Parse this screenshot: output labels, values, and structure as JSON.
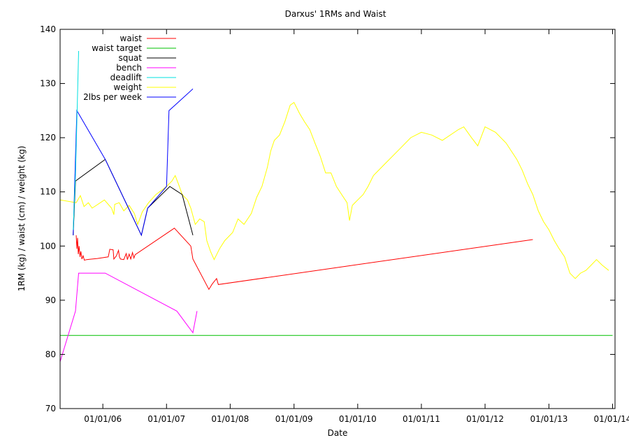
{
  "chart_data": {
    "type": "line",
    "title": "Darxus' 1RMs and Waist",
    "xlabel": "Date",
    "ylabel": "1RM (kg) / waist (cm) / weight (kg)",
    "xlim": [
      "2005-05-01",
      "2014-01-15"
    ],
    "ylim": [
      70,
      140
    ],
    "x_ticks": [
      {
        "date": "2006-01-01",
        "label": "01/01/06"
      },
      {
        "date": "2007-01-01",
        "label": "01/01/07"
      },
      {
        "date": "2008-01-01",
        "label": "01/01/08"
      },
      {
        "date": "2009-01-01",
        "label": "01/01/09"
      },
      {
        "date": "2010-01-01",
        "label": "01/01/10"
      },
      {
        "date": "2011-01-01",
        "label": "01/01/11"
      },
      {
        "date": "2012-01-01",
        "label": "01/01/12"
      },
      {
        "date": "2013-01-01",
        "label": "01/01/13"
      },
      {
        "date": "2014-01-01",
        "label": "01/01/14"
      }
    ],
    "y_ticks": [
      70,
      80,
      90,
      100,
      110,
      120,
      130,
      140
    ],
    "legend_position": "top-left",
    "grid": false,
    "series": [
      {
        "name": "waist",
        "color": "#ff0000",
        "points": [
          [
            "2005-08-01",
            102
          ],
          [
            "2005-08-05",
            99.5
          ],
          [
            "2005-08-09",
            101.5
          ],
          [
            "2005-08-13",
            98.5
          ],
          [
            "2005-08-18",
            100
          ],
          [
            "2005-08-23",
            98
          ],
          [
            "2005-08-28",
            99
          ],
          [
            "2005-09-03",
            97.6
          ],
          [
            "2005-09-10",
            98.2
          ],
          [
            "2005-09-17",
            97.4
          ],
          [
            "2005-10-01",
            97.5
          ],
          [
            "2005-12-01",
            97.7
          ],
          [
            "2006-02-01",
            98
          ],
          [
            "2006-02-10",
            99.4
          ],
          [
            "2006-03-01",
            99.3
          ],
          [
            "2006-03-05",
            97.6
          ],
          [
            "2006-03-20",
            98.2
          ],
          [
            "2006-04-01",
            99.2
          ],
          [
            "2006-04-06",
            98
          ],
          [
            "2006-04-12",
            97.6
          ],
          [
            "2006-05-01",
            97.5
          ],
          [
            "2006-05-15",
            98.6
          ],
          [
            "2006-05-22",
            97.5
          ],
          [
            "2006-06-01",
            98.5
          ],
          [
            "2006-06-10",
            97.6
          ],
          [
            "2006-06-20",
            98.8
          ],
          [
            "2006-06-28",
            97.8
          ],
          [
            "2006-07-05",
            98.4
          ],
          [
            "2007-02-15",
            103.3
          ],
          [
            "2007-05-20",
            100
          ],
          [
            "2007-06-01",
            97.6
          ],
          [
            "2007-09-01",
            92
          ],
          [
            "2007-09-20",
            93
          ],
          [
            "2007-10-15",
            94
          ],
          [
            "2007-10-25",
            92.9
          ],
          [
            "2012-10-01",
            101.2
          ]
        ]
      },
      {
        "name": "waist target",
        "color": "#00c000",
        "points": [
          [
            "2005-05-01",
            83.5
          ],
          [
            "2014-01-01",
            83.5
          ]
        ]
      },
      {
        "name": "squat",
        "color": "#000000",
        "points": [
          [
            "2005-07-15",
            102
          ],
          [
            "2005-07-28",
            112
          ],
          [
            "2006-01-15",
            116
          ],
          [
            "2006-08-10",
            102
          ],
          [
            "2006-09-15",
            107
          ],
          [
            "2007-01-20",
            111
          ],
          [
            "2007-04-01",
            109.5
          ],
          [
            "2007-06-01",
            102
          ]
        ]
      },
      {
        "name": "bench",
        "color": "#ff00ff",
        "points": [
          [
            "2005-04-25",
            78
          ],
          [
            "2005-07-28",
            88
          ],
          [
            "2005-08-15",
            95
          ],
          [
            "2006-01-15",
            95
          ],
          [
            "2007-03-01",
            88
          ],
          [
            "2007-06-01",
            84
          ],
          [
            "2007-06-25",
            88
          ]
        ]
      },
      {
        "name": "deadlift",
        "color": "#00e0e0",
        "points": [
          [
            "2005-07-15",
            103
          ],
          [
            "2005-07-28",
            113
          ],
          [
            "2005-08-05",
            123
          ],
          [
            "2005-08-15",
            136
          ]
        ]
      },
      {
        "name": "weight",
        "color": "#ffff00",
        "points": [
          [
            "2005-05-01",
            108.5
          ],
          [
            "2005-08-01",
            108
          ],
          [
            "2005-08-25",
            109.3
          ],
          [
            "2005-09-15",
            107.3
          ],
          [
            "2005-10-10",
            108
          ],
          [
            "2005-11-01",
            107
          ],
          [
            "2006-01-10",
            108.5
          ],
          [
            "2006-02-20",
            107
          ],
          [
            "2006-03-05",
            105.8
          ],
          [
            "2006-03-10",
            107.7
          ],
          [
            "2006-04-05",
            108
          ],
          [
            "2006-05-01",
            106.5
          ],
          [
            "2006-06-01",
            107.5
          ],
          [
            "2006-07-01",
            106
          ],
          [
            "2006-07-20",
            104
          ],
          [
            "2006-08-15",
            106.3
          ],
          [
            "2006-09-20",
            108
          ],
          [
            "2006-11-01",
            109.5
          ],
          [
            "2007-01-01",
            111
          ],
          [
            "2007-02-01",
            112
          ],
          [
            "2007-02-20",
            113
          ],
          [
            "2007-03-10",
            111.5
          ],
          [
            "2007-04-01",
            109.5
          ],
          [
            "2007-05-01",
            108.5
          ],
          [
            "2007-05-20",
            107
          ],
          [
            "2007-06-15",
            104
          ],
          [
            "2007-07-10",
            105
          ],
          [
            "2007-08-05",
            104.5
          ],
          [
            "2007-08-20",
            101
          ],
          [
            "2007-09-10",
            99
          ],
          [
            "2007-10-01",
            97.5
          ],
          [
            "2007-11-01",
            99.5
          ],
          [
            "2007-12-01",
            101
          ],
          [
            "2008-01-15",
            102.5
          ],
          [
            "2008-02-15",
            105
          ],
          [
            "2008-03-20",
            104
          ],
          [
            "2008-05-01",
            106
          ],
          [
            "2008-06-01",
            109
          ],
          [
            "2008-07-01",
            111
          ],
          [
            "2008-08-01",
            114.5
          ],
          [
            "2008-08-20",
            117.5
          ],
          [
            "2008-09-10",
            119.5
          ],
          [
            "2008-10-10",
            120.5
          ],
          [
            "2008-11-10",
            123
          ],
          [
            "2008-12-10",
            126
          ],
          [
            "2009-01-01",
            126.5
          ],
          [
            "2009-02-01",
            124.5
          ],
          [
            "2009-03-01",
            123
          ],
          [
            "2009-04-01",
            121.5
          ],
          [
            "2009-05-01",
            119
          ],
          [
            "2009-06-01",
            116.5
          ],
          [
            "2009-07-01",
            113.5
          ],
          [
            "2009-08-01",
            113.5
          ],
          [
            "2009-09-01",
            111
          ],
          [
            "2009-10-01",
            109.5
          ],
          [
            "2009-11-01",
            108
          ],
          [
            "2009-11-15",
            104.7
          ],
          [
            "2009-12-01",
            107.5
          ],
          [
            "2010-01-01",
            108.5
          ],
          [
            "2010-02-01",
            109.5
          ],
          [
            "2010-03-01",
            111
          ],
          [
            "2010-04-01",
            113
          ],
          [
            "2010-06-01",
            115
          ],
          [
            "2010-09-01",
            118
          ],
          [
            "2010-11-01",
            120
          ],
          [
            "2011-01-01",
            121
          ],
          [
            "2011-03-01",
            120.5
          ],
          [
            "2011-05-01",
            119.5
          ],
          [
            "2011-08-01",
            121.5
          ],
          [
            "2011-09-01",
            122
          ],
          [
            "2011-10-15",
            120
          ],
          [
            "2011-11-20",
            118.5
          ],
          [
            "2012-01-01",
            122
          ],
          [
            "2012-03-01",
            121
          ],
          [
            "2012-05-01",
            119
          ],
          [
            "2012-07-01",
            116
          ],
          [
            "2012-08-01",
            114
          ],
          [
            "2012-09-01",
            111.5
          ],
          [
            "2012-10-01",
            109.5
          ],
          [
            "2012-11-01",
            106.5
          ],
          [
            "2012-12-01",
            104.5
          ],
          [
            "2013-01-01",
            103
          ],
          [
            "2013-02-01",
            101
          ],
          [
            "2013-03-01",
            99.5
          ],
          [
            "2013-04-01",
            98
          ],
          [
            "2013-05-01",
            95
          ],
          [
            "2013-06-01",
            94
          ],
          [
            "2013-07-01",
            95
          ],
          [
            "2013-08-01",
            95.5
          ],
          [
            "2013-09-01",
            96.5
          ],
          [
            "2013-10-01",
            97.5
          ],
          [
            "2013-11-01",
            96.5
          ],
          [
            "2013-12-10",
            95.5
          ]
        ]
      },
      {
        "name": "2lbs per week",
        "color": "#0000ff",
        "points": [
          [
            "2005-07-15",
            102
          ],
          [
            "2005-08-05",
            125
          ],
          [
            "2006-01-15",
            116
          ],
          [
            "2006-08-10",
            102
          ],
          [
            "2006-09-15",
            107
          ],
          [
            "2007-01-01",
            111
          ],
          [
            "2007-01-15",
            125
          ],
          [
            "2007-06-01",
            129
          ]
        ]
      }
    ]
  }
}
